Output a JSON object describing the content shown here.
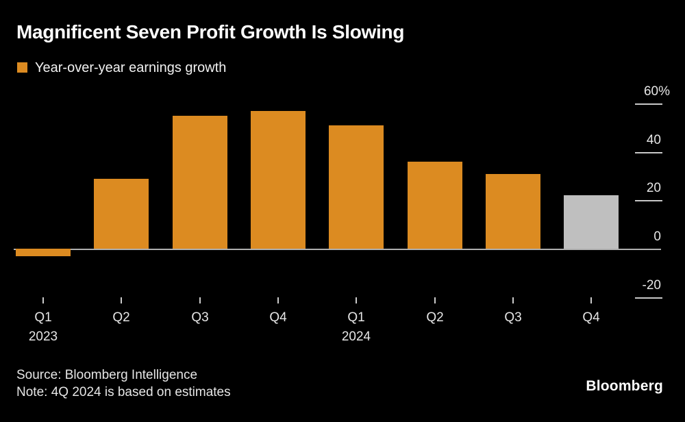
{
  "header": {
    "title": "Magnificent Seven Profit Growth Is Slowing"
  },
  "legend": {
    "label": "Year-over-year earnings growth",
    "swatch_color": "#DC8B21"
  },
  "chart_data": {
    "type": "bar",
    "title": "Magnificent Seven Profit Growth Is Slowing",
    "legend": "Year-over-year earnings growth",
    "unit": "%",
    "categories": [
      "Q1 2023",
      "Q2 2023",
      "Q3 2023",
      "Q4 2023",
      "Q1 2024",
      "Q2 2024",
      "Q3 2024",
      "Q4 2024"
    ],
    "x_tick_labels": [
      "Q1",
      "Q2",
      "Q3",
      "Q4",
      "Q1",
      "Q2",
      "Q3",
      "Q4"
    ],
    "x_year_labels": [
      {
        "index": 0,
        "label": "2023"
      },
      {
        "index": 4,
        "label": "2024"
      }
    ],
    "values": [
      -3,
      29,
      55,
      57,
      51,
      36,
      31,
      22
    ],
    "bar_color": "#DC8B21",
    "estimate_bar_color": "#BFBFBF",
    "estimate_index": 7,
    "y_ticks": [
      {
        "label": "60%",
        "value": 60
      },
      {
        "label": "40",
        "value": 40
      },
      {
        "label": "20",
        "value": 20
      },
      {
        "label": "0",
        "value": 0
      },
      {
        "label": "-20",
        "value": -20
      }
    ],
    "ylim": [
      -25,
      62
    ],
    "grid": "off",
    "axis_side": "right",
    "legend_position": "top-left"
  },
  "footer": {
    "source": "Source: Bloomberg Intelligence",
    "note": "Note: 4Q 2024 is based on estimates",
    "logo": "Bloomberg"
  }
}
